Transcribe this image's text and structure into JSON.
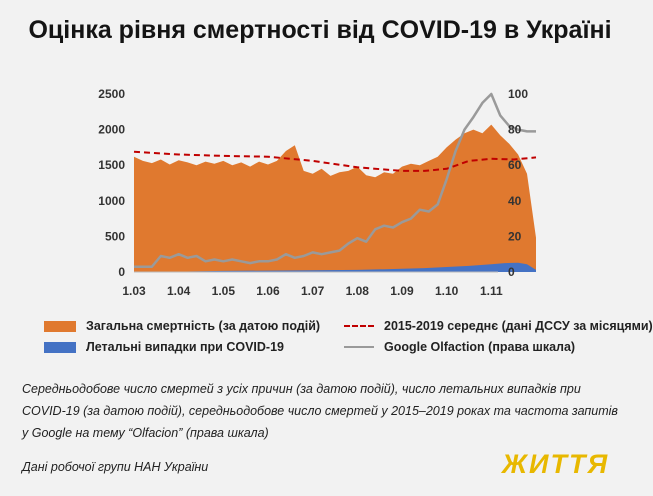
{
  "title": "Оцінка рівня смертності від COVID-19 в Україні",
  "chart_data": {
    "type": "area",
    "x_tick_labels": [
      "1.03",
      "1.04",
      "1.05",
      "1.06",
      "1.07",
      "1.08",
      "1.09",
      "1.10",
      "1.11"
    ],
    "left_axis": {
      "ylim": [
        0,
        2500
      ],
      "ticks": [
        0,
        500,
        1000,
        1500,
        2000,
        2500
      ]
    },
    "right_axis": {
      "ylim": [
        0,
        100
      ],
      "ticks": [
        0,
        20,
        40,
        60,
        80,
        100
      ]
    },
    "grid": false,
    "legend_position": "bottom",
    "series": [
      {
        "name": "Загальна смертність (за датою подій)",
        "kind": "area",
        "axis": "left",
        "color": "#e0792f",
        "x": [
          0,
          0.2,
          0.4,
          0.6,
          0.8,
          1,
          1.2,
          1.4,
          1.6,
          1.8,
          2,
          2.2,
          2.4,
          2.6,
          2.8,
          3,
          3.2,
          3.4,
          3.6,
          3.8,
          4,
          4.2,
          4.4,
          4.6,
          4.8,
          5,
          5.2,
          5.4,
          5.6,
          5.8,
          6,
          6.2,
          6.4,
          6.6,
          6.8,
          7,
          7.2,
          7.4,
          7.6,
          7.8,
          8,
          8.2,
          8.4,
          8.6,
          8.8,
          9
        ],
        "values": [
          1620,
          1560,
          1530,
          1580,
          1510,
          1570,
          1540,
          1500,
          1550,
          1520,
          1560,
          1500,
          1540,
          1480,
          1550,
          1510,
          1560,
          1700,
          1780,
          1420,
          1380,
          1450,
          1350,
          1400,
          1420,
          1480,
          1360,
          1330,
          1400,
          1380,
          1480,
          1520,
          1500,
          1560,
          1620,
          1750,
          1860,
          1950,
          2000,
          1950,
          2070,
          1920,
          1800,
          1650,
          1380,
          480
        ]
      },
      {
        "name": "Летальні випадки при COVID-19",
        "kind": "area",
        "axis": "left",
        "color": "#4472c4",
        "x": [
          0,
          1,
          2,
          3,
          4,
          5,
          6,
          6.5,
          7,
          7.5,
          8,
          8.3,
          8.6,
          8.8,
          9
        ],
        "values": [
          0,
          5,
          15,
          20,
          25,
          30,
          45,
          55,
          70,
          85,
          110,
          125,
          130,
          110,
          30
        ]
      },
      {
        "name": "2015-2019 середнє (дані ДССУ за місяцями)",
        "kind": "line",
        "axis": "left",
        "color": "#c00000",
        "dashed": true,
        "x": [
          0,
          1,
          2,
          3,
          4,
          5,
          6,
          6.5,
          7,
          7.5,
          8,
          8.5,
          9
        ],
        "values": [
          1690,
          1650,
          1630,
          1620,
          1560,
          1470,
          1420,
          1420,
          1450,
          1560,
          1590,
          1580,
          1610
        ]
      },
      {
        "name": "Google Olfaction (права шкала)",
        "kind": "line",
        "axis": "right",
        "color": "#9a9a9a",
        "x": [
          0,
          0.2,
          0.4,
          0.6,
          0.8,
          1,
          1.2,
          1.4,
          1.6,
          1.8,
          2,
          2.2,
          2.4,
          2.6,
          2.8,
          3,
          3.2,
          3.4,
          3.6,
          3.8,
          4,
          4.2,
          4.4,
          4.6,
          4.8,
          5,
          5.2,
          5.4,
          5.6,
          5.8,
          6,
          6.2,
          6.4,
          6.6,
          6.8,
          7,
          7.2,
          7.4,
          7.6,
          7.8,
          8,
          8.2,
          8.4,
          8.6,
          8.8,
          9
        ],
        "values": [
          3,
          3,
          3,
          9,
          8,
          10,
          8,
          9,
          6,
          7,
          6,
          7,
          6,
          5,
          6,
          6,
          7,
          10,
          8,
          9,
          11,
          10,
          11,
          12,
          16,
          19,
          17,
          24,
          26,
          25,
          28,
          30,
          35,
          34,
          38,
          52,
          68,
          80,
          87,
          95,
          100,
          88,
          82,
          80,
          79,
          79
        ]
      }
    ]
  },
  "caption": "Середньодобове число смертей з усіх причин (за датою подій), число летальних випадків при COVID-19 (за датою подій), середньодобове число смертей у 2015–2019 роках та частота запитів у Google на тему “Olfacion” (права шкала)",
  "source": "Дані робочої групи НАН України",
  "logo": "ЖИТТЯ"
}
